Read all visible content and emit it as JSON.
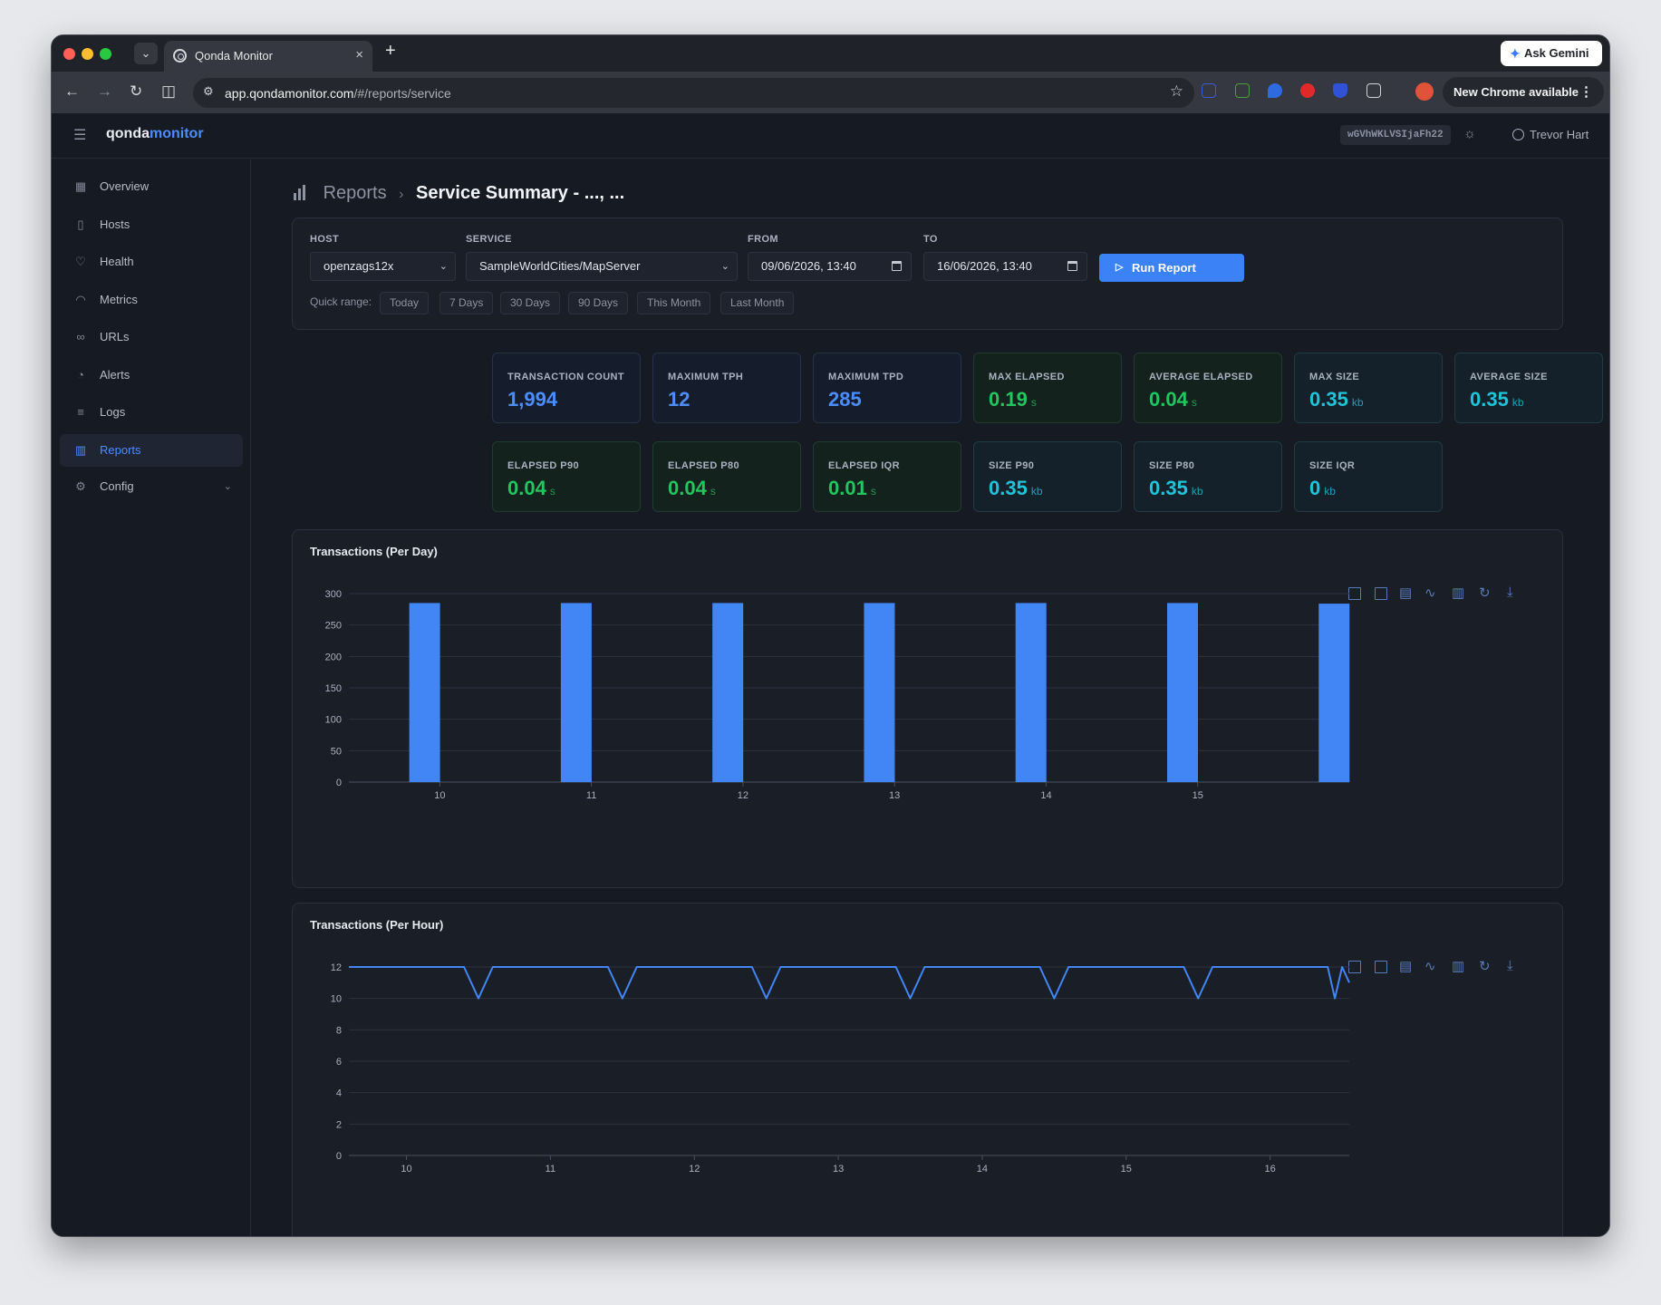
{
  "browser": {
    "tab_title": "Qonda Monitor",
    "tab_close": "×",
    "new_tab": "+",
    "tab_menu": "⌄",
    "ask_gemini": "Ask Gemini",
    "url_host": "app.qondamonitor.com",
    "url_path": "/#/reports/service",
    "new_chrome": "New Chrome available"
  },
  "app": {
    "logo_a": "qonda",
    "logo_b": "monitor",
    "token": "wGVhWKLVSIjaFh22",
    "user_name": "Trevor Hart"
  },
  "sidebar": {
    "items": [
      {
        "label": "Overview",
        "icon": "grid-icon"
      },
      {
        "label": "Hosts",
        "icon": "server-icon"
      },
      {
        "label": "Health",
        "icon": "heart-icon"
      },
      {
        "label": "Metrics",
        "icon": "gauge-icon"
      },
      {
        "label": "URLs",
        "icon": "link-icon"
      },
      {
        "label": "Alerts",
        "icon": "bell-icon"
      },
      {
        "label": "Logs",
        "icon": "list-icon"
      },
      {
        "label": "Reports",
        "icon": "bar-chart-icon"
      },
      {
        "label": "Config",
        "icon": "gear-icon"
      }
    ],
    "active": "Reports"
  },
  "breadcrumb": {
    "parent": "Reports",
    "separator": "›",
    "current": "Service Summary - ..., ..."
  },
  "filters": {
    "host_label": "HOST",
    "host_value": "openzags12x",
    "service_label": "SERVICE",
    "service_value": "SampleWorldCities/MapServer",
    "from_label": "FROM",
    "from_value": "09/06/2026, 13:40",
    "to_label": "TO",
    "to_value": "16/06/2026, 13:40",
    "run_label": "Run Report",
    "quick_label": "Quick range:",
    "quick": [
      "Today",
      "7 Days",
      "30 Days",
      "90 Days",
      "This Month",
      "Last Month"
    ]
  },
  "stats": [
    {
      "label": "TRANSACTION COUNT",
      "value": "1,994",
      "unit": "",
      "tone": "blue"
    },
    {
      "label": "MAXIMUM TPH",
      "value": "12",
      "unit": "",
      "tone": "blue"
    },
    {
      "label": "MAXIMUM TPD",
      "value": "285",
      "unit": "",
      "tone": "blue"
    },
    {
      "label": "MAX ELAPSED",
      "value": "0.19",
      "unit": "s",
      "tone": "green"
    },
    {
      "label": "AVERAGE ELAPSED",
      "value": "0.04",
      "unit": "s",
      "tone": "green"
    },
    {
      "label": "MAX SIZE",
      "value": "0.35",
      "unit": "kb",
      "tone": "teal"
    },
    {
      "label": "AVERAGE SIZE",
      "value": "0.35",
      "unit": "kb",
      "tone": "teal"
    },
    {
      "label": "ELAPSED P90",
      "value": "0.04",
      "unit": "s",
      "tone": "green"
    },
    {
      "label": "ELAPSED P80",
      "value": "0.04",
      "unit": "s",
      "tone": "green"
    },
    {
      "label": "ELAPSED IQR",
      "value": "0.01",
      "unit": "s",
      "tone": "green"
    },
    {
      "label": "SIZE P90",
      "value": "0.35",
      "unit": "kb",
      "tone": "teal"
    },
    {
      "label": "SIZE P80",
      "value": "0.35",
      "unit": "kb",
      "tone": "teal"
    },
    {
      "label": "SIZE IQR",
      "value": "0",
      "unit": "kb",
      "tone": "teal"
    }
  ],
  "chart_toolbox": [
    "zoom-select-icon",
    "zoom-reset-icon",
    "data-view-icon",
    "line-chart-icon",
    "bar-chart-icon",
    "restore-icon",
    "download-icon"
  ],
  "colors": {
    "accent": "#3b82f6",
    "series": "#4285f4",
    "green": "#22c55e",
    "teal": "#22c3d8"
  },
  "chart_data": [
    {
      "type": "bar",
      "title": "Transactions (Per Day)",
      "xlabel": "",
      "ylabel": "",
      "x": [
        9.9,
        10.9,
        11.9,
        12.9,
        13.9,
        14.9,
        15.9
      ],
      "values": [
        285,
        285,
        285,
        285,
        285,
        285,
        284
      ],
      "xticks": [
        10,
        11,
        12,
        13,
        14,
        15
      ],
      "xlim": [
        9.4,
        16.0
      ],
      "ylim": [
        0,
        300
      ],
      "yticks": [
        0,
        50,
        100,
        150,
        200,
        250,
        300
      ],
      "grid": true
    },
    {
      "type": "line",
      "title": "Transactions (Per Hour)",
      "xlabel": "",
      "ylabel": "",
      "x": [
        9.6,
        10.4,
        10.45,
        10.5,
        10.55,
        10.6,
        11.4,
        11.45,
        11.5,
        11.55,
        11.6,
        12.4,
        12.45,
        12.5,
        12.55,
        12.6,
        13.4,
        13.45,
        13.5,
        13.55,
        13.6,
        14.4,
        14.45,
        14.5,
        14.55,
        14.6,
        15.4,
        15.45,
        15.5,
        15.55,
        15.6,
        16.4,
        16.45,
        16.5,
        16.55
      ],
      "y": [
        12,
        12,
        11,
        10,
        11,
        12,
        12,
        11,
        10,
        11,
        12,
        12,
        11,
        10,
        11,
        12,
        12,
        11,
        10,
        11,
        12,
        12,
        11,
        10,
        11,
        12,
        12,
        11,
        10,
        11,
        12,
        12,
        10,
        12,
        11
      ],
      "xticks": [
        10,
        11,
        12,
        13,
        14,
        15,
        16
      ],
      "xlim": [
        9.6,
        16.55
      ],
      "ylim": [
        0,
        12
      ],
      "yticks": [
        0,
        2,
        4,
        6,
        8,
        10,
        12
      ],
      "grid": true
    }
  ]
}
